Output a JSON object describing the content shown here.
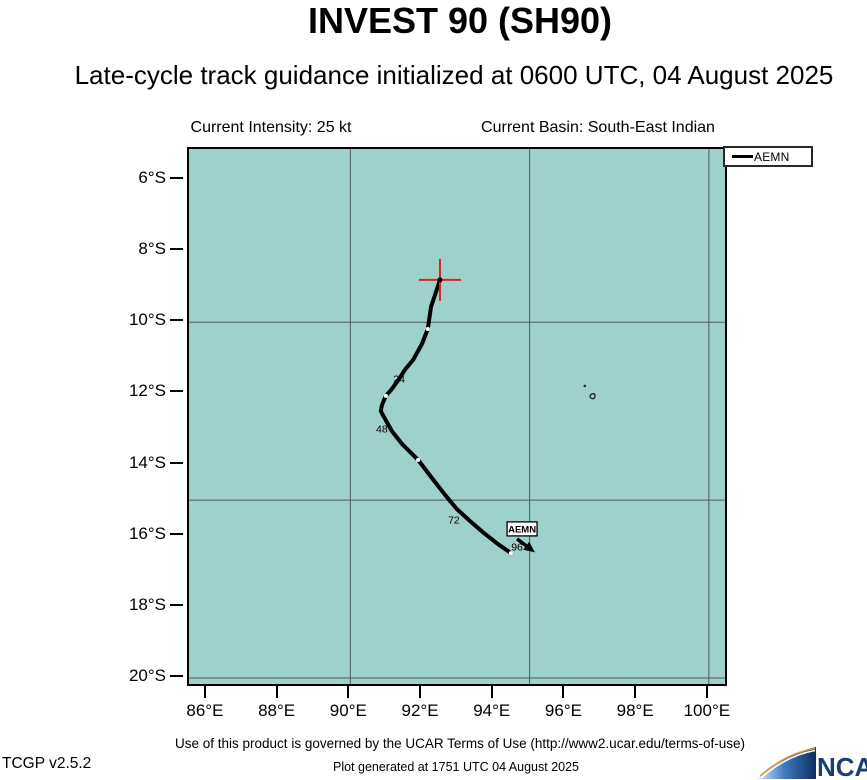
{
  "header": {
    "title": "INVEST 90 (SH90)",
    "subtitle": "Late-cycle track guidance initialized at 0600 UTC, 04 August 2025",
    "intensity_label": "Current Intensity: 25 kt",
    "basin_label": "Current Basin: South-East Indian"
  },
  "legend": {
    "entries": [
      {
        "label": "AEMN",
        "color": "#000000"
      }
    ]
  },
  "chart_data": {
    "type": "line",
    "title": "INVEST 90 (SH90) late-cycle track guidance",
    "basemap": "South-East Indian Ocean",
    "xlabel": "",
    "ylabel": "",
    "xlim": [
      85.5,
      100.45
    ],
    "ylim_latS": [
      5.13,
      20.17
    ],
    "grid": true,
    "grid_lon": [
      90,
      95,
      100
    ],
    "grid_latS": [
      10,
      15,
      20
    ],
    "x_ticks": [
      {
        "value": 86,
        "label": "86°E"
      },
      {
        "value": 88,
        "label": "88°E"
      },
      {
        "value": 90,
        "label": "90°E"
      },
      {
        "value": 92,
        "label": "92°E"
      },
      {
        "value": 94,
        "label": "94°E"
      },
      {
        "value": 96,
        "label": "96°E"
      },
      {
        "value": 98,
        "label": "98°E"
      },
      {
        "value": 100,
        "label": "100°E"
      }
    ],
    "y_ticks": [
      {
        "value": 6,
        "label": "6°S"
      },
      {
        "value": 8,
        "label": "8°S"
      },
      {
        "value": 10,
        "label": "10°S"
      },
      {
        "value": 12,
        "label": "12°S"
      },
      {
        "value": 14,
        "label": "14°S"
      },
      {
        "value": 16,
        "label": "16°S"
      },
      {
        "value": 18,
        "label": "18°S"
      },
      {
        "value": 20,
        "label": "20°S"
      }
    ],
    "series": [
      {
        "name": "AEMN",
        "color": "#000000",
        "track_12hourly": [
          {
            "hour": 0,
            "lon": 92.5,
            "latS": 8.8
          },
          {
            "hour": 12,
            "lon": 92.2,
            "latS": 10.2
          },
          {
            "hour": 24,
            "lon": 91.4,
            "latS": 11.6
          },
          {
            "hour": 36,
            "lon": 91.0,
            "latS": 12.1
          },
          {
            "hour": 48,
            "lon": 90.9,
            "latS": 12.7
          },
          {
            "hour": 60,
            "lon": 91.9,
            "latS": 13.9
          },
          {
            "hour": 72,
            "lon": 93.0,
            "latS": 15.2
          },
          {
            "hour": 84,
            "lon": 93.7,
            "latS": 15.9
          },
          {
            "hour": 96,
            "lon": 94.5,
            "latS": 16.5
          }
        ],
        "path": [
          [
            92.5,
            8.81
          ],
          [
            92.39,
            9.15
          ],
          [
            92.25,
            9.57
          ],
          [
            92.16,
            10.19
          ],
          [
            92.0,
            10.61
          ],
          [
            91.75,
            11.06
          ],
          [
            91.52,
            11.34
          ],
          [
            91.36,
            11.6
          ],
          [
            91.13,
            11.91
          ],
          [
            90.99,
            12.07
          ],
          [
            90.88,
            12.33
          ],
          [
            90.85,
            12.5
          ],
          [
            90.97,
            12.72
          ],
          [
            91.16,
            13.06
          ],
          [
            91.44,
            13.42
          ],
          [
            91.89,
            13.87
          ],
          [
            92.3,
            14.41
          ],
          [
            92.67,
            14.89
          ],
          [
            92.97,
            15.25
          ],
          [
            93.34,
            15.59
          ],
          [
            93.73,
            15.93
          ],
          [
            94.12,
            16.24
          ],
          [
            94.48,
            16.49
          ]
        ],
        "white_dots": [
          [
            92.16,
            10.19
          ],
          [
            90.99,
            12.07
          ],
          [
            91.89,
            13.87
          ],
          [
            94.48,
            16.49
          ]
        ],
        "hour_labels": [
          {
            "text": "24",
            "lon": 91.36,
            "latS": 11.6
          },
          {
            "text": "48",
            "lon": 90.88,
            "latS": 13.0
          },
          {
            "text": "72",
            "lon": 92.89,
            "latS": 15.56
          },
          {
            "text": "96",
            "lon": 94.65,
            "latS": 16.32
          }
        ],
        "end_label": {
          "text": "AEMN",
          "lon": 94.79,
          "latS": 15.81
        },
        "motion_arrow": {
          "from": {
            "lon": 94.65,
            "latS": 16.09
          },
          "to": {
            "lon": 95.15,
            "latS": 16.47
          }
        }
      }
    ],
    "start_marker": {
      "symbol": "cross",
      "color": "#e02020",
      "lon": 92.5,
      "latS": 8.81
    },
    "islands": [
      {
        "name": "island-speck",
        "lon": 96.54,
        "latS": 11.79
      },
      {
        "name": "island-hook",
        "lon": 96.79,
        "latS": 12.1
      }
    ],
    "map_fill": "#9fd1cc",
    "grid_color": "#4d5a5a"
  },
  "footer": {
    "terms": "Use of this product is governed by the UCAR Terms of Use (http://www2.ucar.edu/terms-of-use)",
    "version": "TCGP v2.5.2",
    "generated": "Plot generated at 1751 UTC   04 August 2025",
    "logo_text": "NCAR"
  }
}
